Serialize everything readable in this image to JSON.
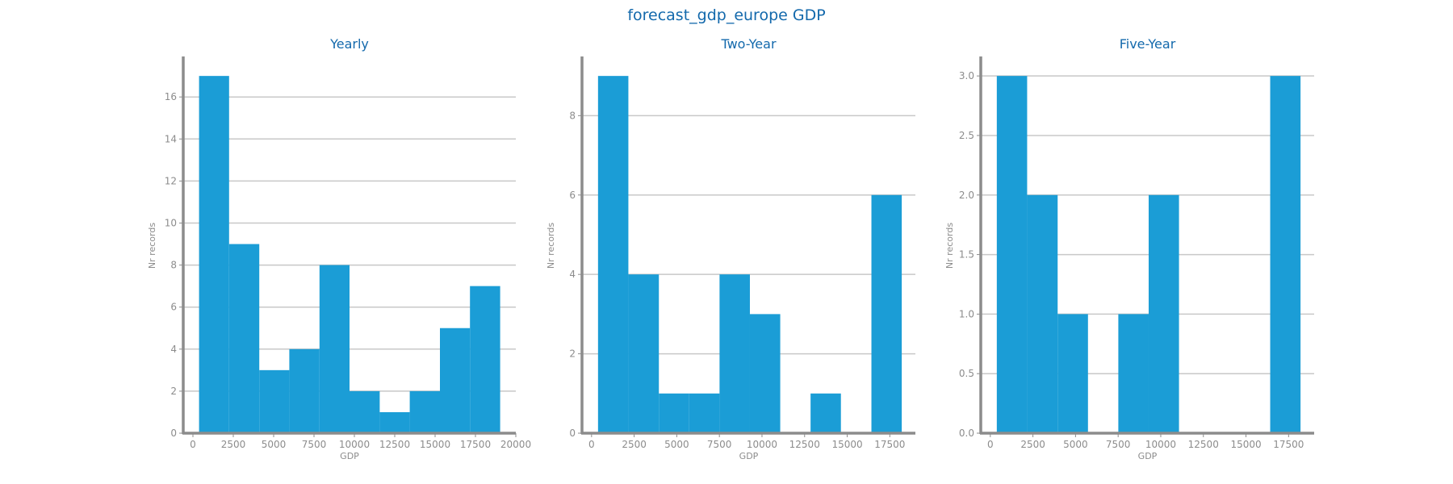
{
  "figure_title": "forecast_gdp_europe GDP",
  "colors": {
    "bar": "#1b9dd6",
    "grid": "#c8c8c8",
    "axis": "#8c8c8c",
    "title": "#1369ac",
    "tick": "#8c8c8c"
  },
  "chart_data": [
    {
      "type": "bar",
      "title": "Yearly",
      "xlabel": "GDP",
      "ylabel": "Nr records",
      "xlim": [
        -600,
        20000
      ],
      "ylim": [
        0,
        17.85
      ],
      "xticks": [
        0,
        2500,
        5000,
        7500,
        10000,
        12500,
        15000,
        17500,
        20000
      ],
      "yticks": [
        0,
        2,
        4,
        6,
        8,
        10,
        12,
        14,
        16
      ],
      "grid": "horizontal",
      "bins": [
        {
          "x0": 380,
          "x1": 2240,
          "count": 17
        },
        {
          "x0": 2240,
          "x1": 4110,
          "count": 9
        },
        {
          "x0": 4110,
          "x1": 5970,
          "count": 3
        },
        {
          "x0": 5970,
          "x1": 7840,
          "count": 4
        },
        {
          "x0": 7840,
          "x1": 9700,
          "count": 8
        },
        {
          "x0": 9700,
          "x1": 11570,
          "count": 2
        },
        {
          "x0": 11570,
          "x1": 13430,
          "count": 1
        },
        {
          "x0": 13430,
          "x1": 15300,
          "count": 2
        },
        {
          "x0": 15300,
          "x1": 17160,
          "count": 5
        },
        {
          "x0": 17160,
          "x1": 19030,
          "count": 7
        }
      ]
    },
    {
      "type": "bar",
      "title": "Two-Year",
      "xlabel": "GDP",
      "ylabel": "Nr records",
      "xlim": [
        -560,
        19000
      ],
      "ylim": [
        0,
        9.45
      ],
      "xticks": [
        0,
        2500,
        5000,
        7500,
        10000,
        12500,
        15000,
        17500
      ],
      "yticks": [
        0,
        2,
        4,
        6,
        8
      ],
      "grid": "horizontal",
      "bins": [
        {
          "x0": 380,
          "x1": 2160,
          "count": 9
        },
        {
          "x0": 2160,
          "x1": 3950,
          "count": 4
        },
        {
          "x0": 3950,
          "x1": 5730,
          "count": 1
        },
        {
          "x0": 5730,
          "x1": 7510,
          "count": 1
        },
        {
          "x0": 7510,
          "x1": 9290,
          "count": 4
        },
        {
          "x0": 9290,
          "x1": 11070,
          "count": 3
        },
        {
          "x0": 11070,
          "x1": 12850,
          "count": 0
        },
        {
          "x0": 12850,
          "x1": 14630,
          "count": 1
        },
        {
          "x0": 14630,
          "x1": 16420,
          "count": 0
        },
        {
          "x0": 16420,
          "x1": 18200,
          "count": 6
        }
      ]
    },
    {
      "type": "bar",
      "title": "Five-Year",
      "xlabel": "GDP",
      "ylabel": "Nr records",
      "xlim": [
        -560,
        19000
      ],
      "ylim": [
        0,
        3.15
      ],
      "xticks": [
        0,
        2500,
        5000,
        7500,
        10000,
        12500,
        15000,
        17500
      ],
      "yticks": [
        "0.0",
        "0.5",
        "1.0",
        "1.5",
        "2.0",
        "2.5",
        "3.0"
      ],
      "grid": "horizontal",
      "bins": [
        {
          "x0": 380,
          "x1": 2160,
          "count": 3
        },
        {
          "x0": 2160,
          "x1": 3950,
          "count": 2
        },
        {
          "x0": 3950,
          "x1": 5730,
          "count": 1
        },
        {
          "x0": 5730,
          "x1": 7510,
          "count": 0
        },
        {
          "x0": 7510,
          "x1": 9290,
          "count": 1
        },
        {
          "x0": 9290,
          "x1": 11070,
          "count": 2
        },
        {
          "x0": 11070,
          "x1": 12850,
          "count": 0
        },
        {
          "x0": 12850,
          "x1": 14630,
          "count": 0
        },
        {
          "x0": 14630,
          "x1": 16420,
          "count": 0
        },
        {
          "x0": 16420,
          "x1": 18200,
          "count": 3
        }
      ]
    }
  ]
}
